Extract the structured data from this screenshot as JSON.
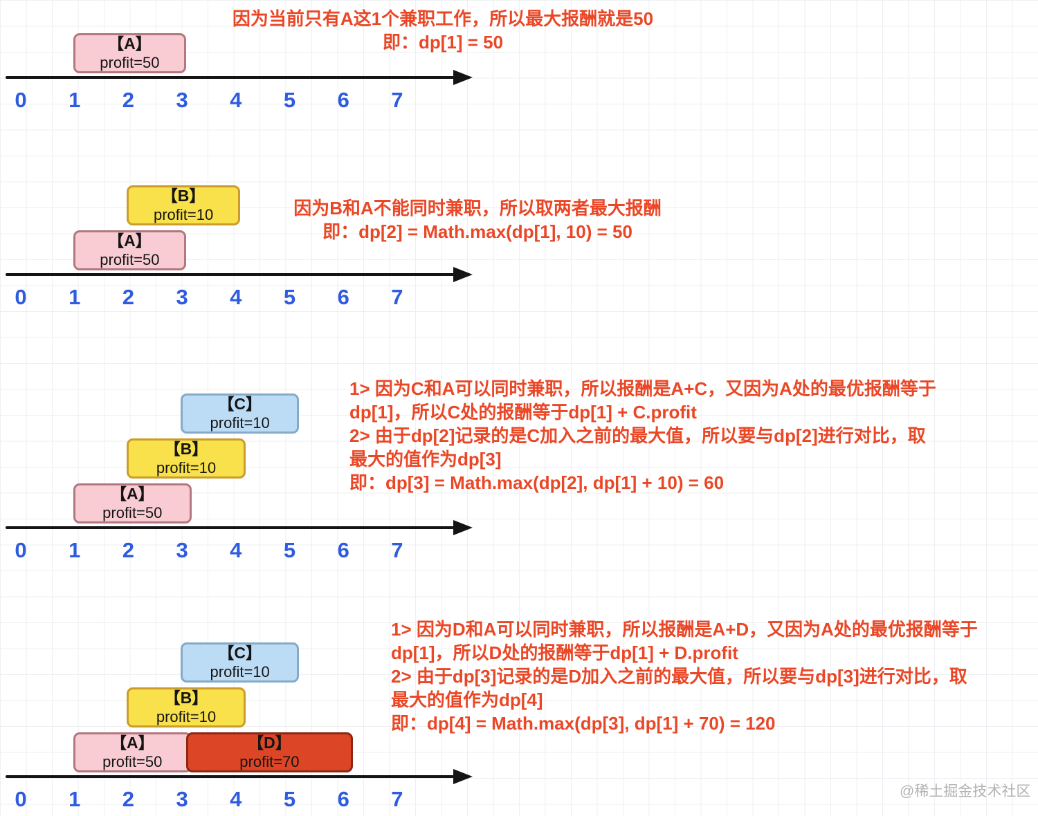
{
  "watermark": "@稀土掘金技术社区",
  "axis_labels": [
    "0",
    "1",
    "2",
    "3",
    "4",
    "5",
    "6",
    "7"
  ],
  "colors": {
    "annotation_text": "#ea4726",
    "axis_number": "#2e5be0",
    "axis_line": "#141414",
    "pink_fill": "#f8ccd2",
    "pink_border": "#b2777f",
    "yellow_fill": "#f8e14b",
    "yellow_border": "#cb9c29",
    "blue_fill": "#bcdcf5",
    "blue_border": "#84aac8",
    "red_fill": "#dc4526",
    "red_border": "#8c2715"
  },
  "sections": [
    {
      "name": "dp1",
      "annotation": {
        "lines": [
          "因为当前只有A这1个兼职工作，所以最大报酬就是50",
          "即：dp[1] = 50"
        ]
      },
      "jobs": [
        {
          "id": "A",
          "label": "【A】",
          "profit": "profit=50",
          "color": "pink",
          "start": 1,
          "end": 3,
          "row": 0
        }
      ]
    },
    {
      "name": "dp2",
      "annotation": {
        "lines": [
          "因为B和A不能同时兼职，所以取两者最大报酬",
          "即：dp[2] = Math.max(dp[1], 10) = 50"
        ]
      },
      "jobs": [
        {
          "id": "B",
          "label": "【B】",
          "profit": "profit=10",
          "color": "yellow",
          "start": 2,
          "end": 4,
          "row": 1
        },
        {
          "id": "A",
          "label": "【A】",
          "profit": "profit=50",
          "color": "pink",
          "start": 1,
          "end": 3,
          "row": 0
        }
      ]
    },
    {
      "name": "dp3",
      "annotation": {
        "lines": [
          "1> 因为C和A可以同时兼职，所以报酬是A+C，又因为A处的最优报酬等于",
          "dp[1]，所以C处的报酬等于dp[1] + C.profit",
          "2> 由于dp[2]记录的是C加入之前的最大值，所以要与dp[2]进行对比，取",
          "最大的值作为dp[3]",
          "即：dp[3] = Math.max(dp[2], dp[1] + 10) = 60"
        ]
      },
      "jobs": [
        {
          "id": "C",
          "label": "【C】",
          "profit": "profit=10",
          "color": "blue",
          "start": 3,
          "end": 5.1,
          "row": 2
        },
        {
          "id": "B",
          "label": "【B】",
          "profit": "profit=10",
          "color": "yellow",
          "start": 2,
          "end": 4.1,
          "row": 1
        },
        {
          "id": "A",
          "label": "【A】",
          "profit": "profit=50",
          "color": "pink",
          "start": 1,
          "end": 3.1,
          "row": 0
        }
      ]
    },
    {
      "name": "dp4",
      "annotation": {
        "lines": [
          "1> 因为D和A可以同时兼职，所以报酬是A+D，又因为A处的最优报酬等于",
          "dp[1]，所以D处的报酬等于dp[1] + D.profit",
          "2> 由于dp[3]记录的是D加入之前的最大值，所以要与dp[3]进行对比，取",
          "最大的值作为dp[4]",
          "即：dp[4] = Math.max(dp[3], dp[1] + 70) = 120"
        ]
      },
      "jobs": [
        {
          "id": "C",
          "label": "【C】",
          "profit": "profit=10",
          "color": "blue",
          "start": 3,
          "end": 5.1,
          "row": 2
        },
        {
          "id": "B",
          "label": "【B】",
          "profit": "profit=10",
          "color": "yellow",
          "start": 2,
          "end": 4.1,
          "row": 1
        },
        {
          "id": "A",
          "label": "【A】",
          "profit": "profit=50",
          "color": "pink",
          "start": 1,
          "end": 3.1,
          "row": 0
        },
        {
          "id": "D",
          "label": "【D】",
          "profit": "profit=70",
          "color": "red",
          "start": 3.1,
          "end": 6.1,
          "row": 0
        }
      ]
    }
  ]
}
